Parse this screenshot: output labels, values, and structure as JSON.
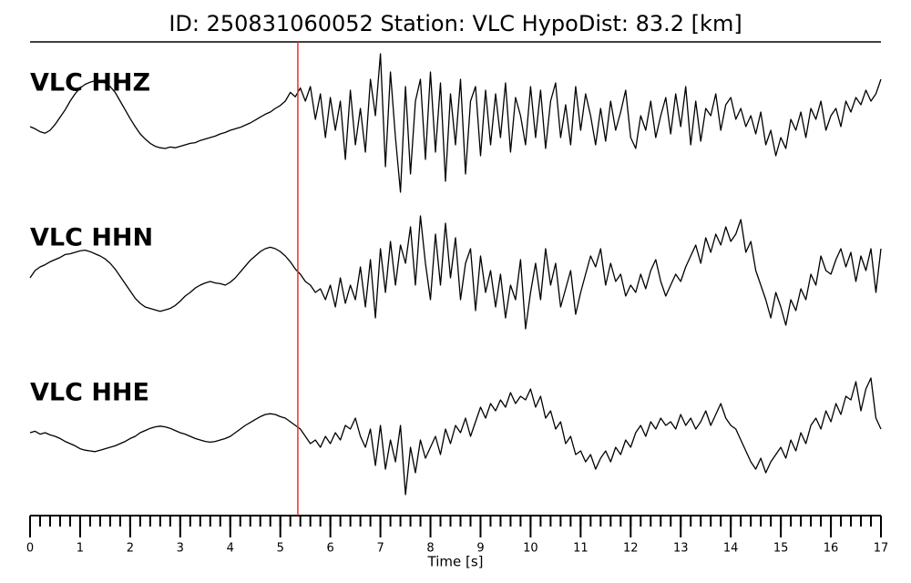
{
  "chart_data": {
    "type": "line",
    "title": "ID: 250831060052   Station: VLC   HypoDist:    83.2 [km]",
    "xlabel": "Time [s]",
    "xlim": [
      0,
      17
    ],
    "xticks": [
      0,
      1,
      2,
      3,
      4,
      5,
      6,
      7,
      8,
      9,
      10,
      11,
      12,
      13,
      14,
      15,
      16,
      17
    ],
    "xminor_step": 0.2,
    "ylim": [
      -1,
      1
    ],
    "pick_time": 5.35,
    "pick_color": "#e8312a",
    "label_color": "#4c9a00",
    "x": [
      0,
      0.1,
      0.2,
      0.3,
      0.4,
      0.5,
      0.6,
      0.7,
      0.8,
      0.9,
      1,
      1.1,
      1.2,
      1.3,
      1.4,
      1.5,
      1.6,
      1.7,
      1.8,
      1.9,
      2,
      2.1,
      2.2,
      2.3,
      2.4,
      2.5,
      2.6,
      2.7,
      2.8,
      2.9,
      3,
      3.1,
      3.2,
      3.3,
      3.4,
      3.5,
      3.6,
      3.7,
      3.8,
      3.9,
      4,
      4.1,
      4.2,
      4.3,
      4.4,
      4.5,
      4.6,
      4.7,
      4.8,
      4.9,
      5,
      5.1,
      5.2,
      5.3,
      5.4,
      5.5,
      5.6,
      5.7,
      5.8,
      5.9,
      6,
      6.1,
      6.2,
      6.3,
      6.4,
      6.5,
      6.6,
      6.7,
      6.8,
      6.9,
      7,
      7.1,
      7.2,
      7.3,
      7.4,
      7.5,
      7.6,
      7.7,
      7.8,
      7.9,
      8,
      8.1,
      8.2,
      8.3,
      8.4,
      8.5,
      8.6,
      8.7,
      8.8,
      8.9,
      9,
      9.1,
      9.2,
      9.3,
      9.4,
      9.5,
      9.6,
      9.7,
      9.8,
      9.9,
      10,
      10.1,
      10.2,
      10.3,
      10.4,
      10.5,
      10.6,
      10.7,
      10.8,
      10.9,
      11,
      11.1,
      11.2,
      11.3,
      11.4,
      11.5,
      11.6,
      11.7,
      11.8,
      11.9,
      12,
      12.1,
      12.2,
      12.3,
      12.4,
      12.5,
      12.6,
      12.7,
      12.8,
      12.9,
      13,
      13.1,
      13.2,
      13.3,
      13.4,
      13.5,
      13.6,
      13.7,
      13.8,
      13.9,
      14,
      14.1,
      14.2,
      14.3,
      14.4,
      14.5,
      14.6,
      14.7,
      14.8,
      14.9,
      15,
      15.1,
      15.2,
      15.3,
      15.4,
      15.5,
      15.6,
      15.7,
      15.8,
      15.9,
      16,
      16.1,
      16.2,
      16.3,
      16.4,
      16.5,
      16.6,
      16.7,
      16.8,
      16.9,
      17
    ],
    "series": [
      {
        "name": "VLC HHZ",
        "color": "#000000",
        "values": [
          -0.05,
          -0.08,
          -0.12,
          -0.14,
          -0.1,
          -0.02,
          0.08,
          0.18,
          0.3,
          0.4,
          0.48,
          0.53,
          0.56,
          0.58,
          0.57,
          0.55,
          0.5,
          0.42,
          0.3,
          0.18,
          0.06,
          -0.05,
          -0.15,
          -0.22,
          -0.28,
          -0.32,
          -0.34,
          -0.35,
          -0.33,
          -0.34,
          -0.32,
          -0.3,
          -0.28,
          -0.27,
          -0.24,
          -0.22,
          -0.2,
          -0.18,
          -0.15,
          -0.13,
          -0.1,
          -0.08,
          -0.06,
          -0.03,
          0.0,
          0.04,
          0.08,
          0.12,
          0.15,
          0.2,
          0.24,
          0.3,
          0.42,
          0.36,
          0.48,
          0.3,
          0.5,
          0.05,
          0.4,
          -0.2,
          0.35,
          -0.1,
          0.3,
          -0.5,
          0.45,
          -0.3,
          0.2,
          -0.4,
          0.6,
          0.1,
          0.95,
          -0.6,
          0.7,
          -0.2,
          -0.95,
          0.5,
          -0.7,
          0.3,
          0.6,
          -0.5,
          0.7,
          -0.4,
          0.55,
          -0.8,
          0.4,
          -0.3,
          0.6,
          -0.7,
          0.3,
          0.5,
          -0.45,
          0.45,
          -0.3,
          0.4,
          -0.2,
          0.55,
          -0.4,
          0.35,
          0.1,
          -0.3,
          0.5,
          -0.2,
          0.45,
          -0.35,
          0.3,
          0.55,
          -0.2,
          0.25,
          -0.3,
          0.5,
          -0.1,
          0.4,
          0.1,
          -0.3,
          0.2,
          -0.25,
          0.3,
          -0.1,
          0.15,
          0.45,
          -0.2,
          -0.35,
          0.1,
          -0.1,
          0.3,
          -0.2,
          0.1,
          0.35,
          -0.15,
          0.4,
          -0.05,
          0.5,
          -0.3,
          0.3,
          -0.25,
          0.2,
          0.1,
          0.4,
          -0.1,
          0.25,
          0.35,
          0.05,
          0.2,
          -0.05,
          0.1,
          -0.15,
          0.15,
          -0.3,
          -0.1,
          -0.45,
          -0.2,
          -0.35,
          0.05,
          -0.1,
          0.15,
          -0.2,
          0.2,
          0.05,
          0.3,
          -0.1,
          0.1,
          0.2,
          -0.05,
          0.3,
          0.15,
          0.35,
          0.25,
          0.45,
          0.3,
          0.4,
          0.6
        ]
      },
      {
        "name": "VLC HHN",
        "color": "#000000",
        "values": [
          0.0,
          0.1,
          0.15,
          0.18,
          0.22,
          0.25,
          0.28,
          0.32,
          0.33,
          0.35,
          0.37,
          0.38,
          0.36,
          0.33,
          0.3,
          0.26,
          0.2,
          0.12,
          0.02,
          -0.08,
          -0.18,
          -0.28,
          -0.35,
          -0.4,
          -0.42,
          -0.44,
          -0.46,
          -0.44,
          -0.42,
          -0.38,
          -0.32,
          -0.25,
          -0.2,
          -0.14,
          -0.1,
          -0.07,
          -0.05,
          -0.07,
          -0.08,
          -0.1,
          -0.06,
          0.0,
          0.08,
          0.16,
          0.24,
          0.3,
          0.36,
          0.4,
          0.42,
          0.4,
          0.36,
          0.3,
          0.22,
          0.12,
          0.05,
          -0.05,
          -0.1,
          -0.2,
          -0.15,
          -0.3,
          -0.1,
          -0.4,
          0.0,
          -0.35,
          -0.1,
          -0.3,
          0.15,
          -0.4,
          0.25,
          -0.55,
          0.4,
          -0.2,
          0.5,
          -0.1,
          0.45,
          0.2,
          0.7,
          -0.1,
          0.85,
          0.2,
          -0.3,
          0.6,
          -0.1,
          0.75,
          0.0,
          0.55,
          -0.3,
          0.2,
          0.4,
          -0.45,
          0.3,
          -0.2,
          0.1,
          -0.4,
          0.05,
          -0.55,
          -0.1,
          -0.3,
          0.25,
          -0.7,
          -0.2,
          0.2,
          -0.3,
          0.4,
          -0.1,
          0.2,
          -0.4,
          -0.15,
          0.1,
          -0.5,
          -0.2,
          0.05,
          0.3,
          0.15,
          0.4,
          -0.1,
          0.2,
          -0.05,
          0.05,
          -0.25,
          -0.1,
          -0.2,
          0.05,
          -0.15,
          0.1,
          0.25,
          -0.05,
          -0.25,
          -0.1,
          0.05,
          -0.05,
          0.15,
          0.3,
          0.45,
          0.2,
          0.55,
          0.35,
          0.6,
          0.45,
          0.7,
          0.5,
          0.6,
          0.8,
          0.35,
          0.5,
          0.1,
          -0.1,
          -0.3,
          -0.55,
          -0.2,
          -0.4,
          -0.65,
          -0.3,
          -0.45,
          -0.15,
          -0.3,
          0.05,
          -0.1,
          0.3,
          0.1,
          0.05,
          0.25,
          0.4,
          0.15,
          0.35,
          -0.05,
          0.3,
          0.1,
          0.4,
          -0.2,
          0.4
        ]
      },
      {
        "name": "VLC HHE",
        "color": "#000000",
        "values": [
          0.0,
          0.02,
          -0.02,
          0.0,
          -0.03,
          -0.05,
          -0.08,
          -0.12,
          -0.15,
          -0.18,
          -0.22,
          -0.24,
          -0.25,
          -0.26,
          -0.24,
          -0.22,
          -0.2,
          -0.18,
          -0.15,
          -0.12,
          -0.08,
          -0.05,
          0.0,
          0.03,
          0.06,
          0.08,
          0.09,
          0.08,
          0.06,
          0.03,
          0.0,
          -0.02,
          -0.05,
          -0.08,
          -0.1,
          -0.12,
          -0.13,
          -0.12,
          -0.1,
          -0.08,
          -0.05,
          0.0,
          0.05,
          0.1,
          0.14,
          0.18,
          0.22,
          0.25,
          0.26,
          0.25,
          0.22,
          0.2,
          0.15,
          0.1,
          0.05,
          -0.05,
          -0.15,
          -0.1,
          -0.2,
          -0.05,
          -0.15,
          0.0,
          -0.1,
          0.1,
          0.05,
          0.2,
          -0.05,
          -0.2,
          0.05,
          -0.45,
          0.1,
          -0.5,
          -0.1,
          -0.4,
          0.1,
          -0.85,
          -0.2,
          -0.55,
          -0.1,
          -0.35,
          -0.2,
          -0.05,
          -0.3,
          0.05,
          -0.15,
          0.1,
          0.0,
          0.2,
          -0.05,
          0.15,
          0.35,
          0.2,
          0.4,
          0.3,
          0.45,
          0.35,
          0.55,
          0.4,
          0.5,
          0.45,
          0.6,
          0.35,
          0.5,
          0.2,
          0.3,
          0.05,
          0.15,
          -0.15,
          -0.05,
          -0.3,
          -0.25,
          -0.4,
          -0.3,
          -0.5,
          -0.35,
          -0.25,
          -0.4,
          -0.2,
          -0.3,
          -0.1,
          -0.2,
          0.0,
          0.1,
          -0.05,
          0.15,
          0.05,
          0.2,
          0.1,
          0.15,
          0.05,
          0.25,
          0.1,
          0.2,
          0.05,
          0.15,
          0.3,
          0.1,
          0.25,
          0.4,
          0.2,
          0.1,
          0.05,
          -0.1,
          -0.25,
          -0.4,
          -0.5,
          -0.35,
          -0.55,
          -0.4,
          -0.3,
          -0.2,
          -0.35,
          -0.1,
          -0.25,
          0.0,
          -0.15,
          0.1,
          0.2,
          0.05,
          0.3,
          0.15,
          0.4,
          0.25,
          0.5,
          0.45,
          0.7,
          0.3,
          0.6,
          0.75,
          0.2,
          0.05
        ]
      }
    ]
  }
}
